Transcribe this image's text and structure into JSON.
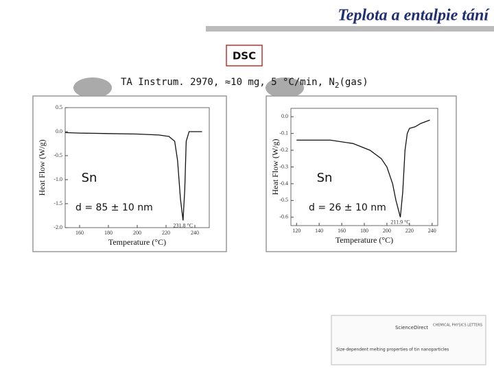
{
  "slide_title": "Teplota a entalpie tání",
  "method": "DSC",
  "conditions": {
    "main": "TA Instrum. 2970, ≈10 mg, 5 °C/min, N",
    "subscript": "2",
    "tail": "(gas)"
  },
  "journal": {
    "name": "CHEMICAL PHYSICS LETTERS",
    "source": "ScienceDirect",
    "article": "Size-dependent melting properties of tin nanoparticles"
  },
  "chart_data": [
    {
      "type": "line",
      "xlabel": "Temperature (°C)",
      "ylabel": "Heat Flow (W/g)",
      "sample": "Sn",
      "size_label": "d = 85 ± 10 nm",
      "peak_label": "231.8 °C",
      "x": [
        150,
        160,
        180,
        200,
        215,
        222,
        226,
        228,
        230,
        231.8,
        233,
        234,
        236,
        240,
        245
      ],
      "values": [
        -0.02,
        -0.03,
        -0.04,
        -0.05,
        -0.07,
        -0.1,
        -0.2,
        -0.6,
        -1.4,
        -1.85,
        -1.2,
        -0.2,
        0.0,
        0.0,
        0.0
      ],
      "color": "#111111",
      "xlim": [
        150,
        250
      ],
      "xticks": [
        160,
        180,
        200,
        220,
        240
      ],
      "ylim": [
        -2.0,
        0.5
      ],
      "yticks": [
        0.5,
        {
          "value": 0,
          "label": "0.0"
        },
        -0.5,
        {
          "value": -1,
          "label": "-1.0"
        },
        -1.5,
        {
          "value": -2,
          "label": "-2.0"
        }
      ]
    },
    {
      "type": "line",
      "xlabel": "Temperature (°C)",
      "ylabel": "Heat Flow (W/g)",
      "sample": "Sn",
      "size_label": "d = 26 ± 10 nm",
      "peak_label": "211.9 °C",
      "x": [
        120,
        150,
        170,
        185,
        195,
        200,
        205,
        208,
        211.9,
        214,
        216,
        218,
        220,
        225,
        230,
        238
      ],
      "values": [
        -0.14,
        -0.14,
        -0.16,
        -0.2,
        -0.25,
        -0.3,
        -0.4,
        -0.5,
        -0.6,
        -0.45,
        -0.2,
        -0.1,
        -0.07,
        -0.06,
        -0.04,
        -0.02
      ],
      "color": "#111111",
      "xlim": [
        115,
        245
      ],
      "xticks": [
        120,
        140,
        160,
        180,
        200,
        220,
        240
      ],
      "ylim": [
        -0.65,
        0.05
      ],
      "yticks": [
        {
          "value": 0,
          "label": "0.0"
        },
        -0.1,
        -0.2,
        -0.3,
        -0.4,
        -0.5,
        -0.6
      ]
    }
  ]
}
